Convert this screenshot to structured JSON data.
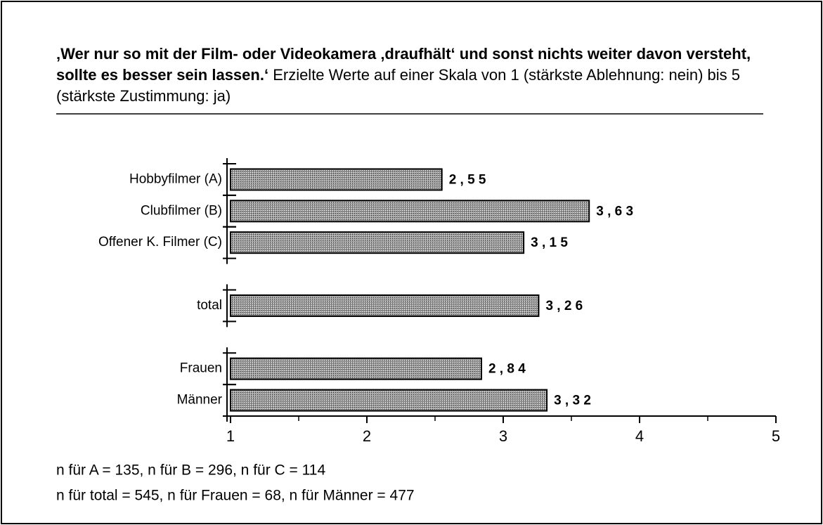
{
  "chart_data": {
    "type": "hbar",
    "title": "‚Wer nur so mit der Film- oder Videokamera ‚draufhält‘ und sonst nichts weiter davon versteht, sollte es besser sein lassen.‘",
    "subtitle": "Erzielte Werte auf einer Skala von 1 (stärkste Ablehnung: nein) bis 5 (stärkste Zustimmung: ja)",
    "categories": [
      "Hobbyfilmer  (A)",
      "Clubfilmer  (B)",
      "Offener  K. Filmer  (C)",
      null,
      "total",
      null,
      "Frauen",
      "Männer"
    ],
    "values": [
      2.55,
      3.63,
      3.15,
      null,
      3.26,
      null,
      2.84,
      3.32
    ],
    "value_labels": [
      "2 , 5 5",
      "3 , 6 3",
      "3 , 1 5",
      null,
      "3 , 2 6",
      null,
      "2 , 8 4",
      "3 , 3 2"
    ],
    "color": "#9a9a9a",
    "xlim": [
      1,
      5
    ],
    "xticks": [
      1,
      2,
      3,
      4,
      5
    ],
    "xminorticks": [
      1.5,
      2.5,
      3.5,
      4.5
    ],
    "notes": [
      "n für A = 135, n für B = 296, n für C = 114",
      "n für total = 545, n für Frauen = 68, n für Männer = 477"
    ]
  }
}
